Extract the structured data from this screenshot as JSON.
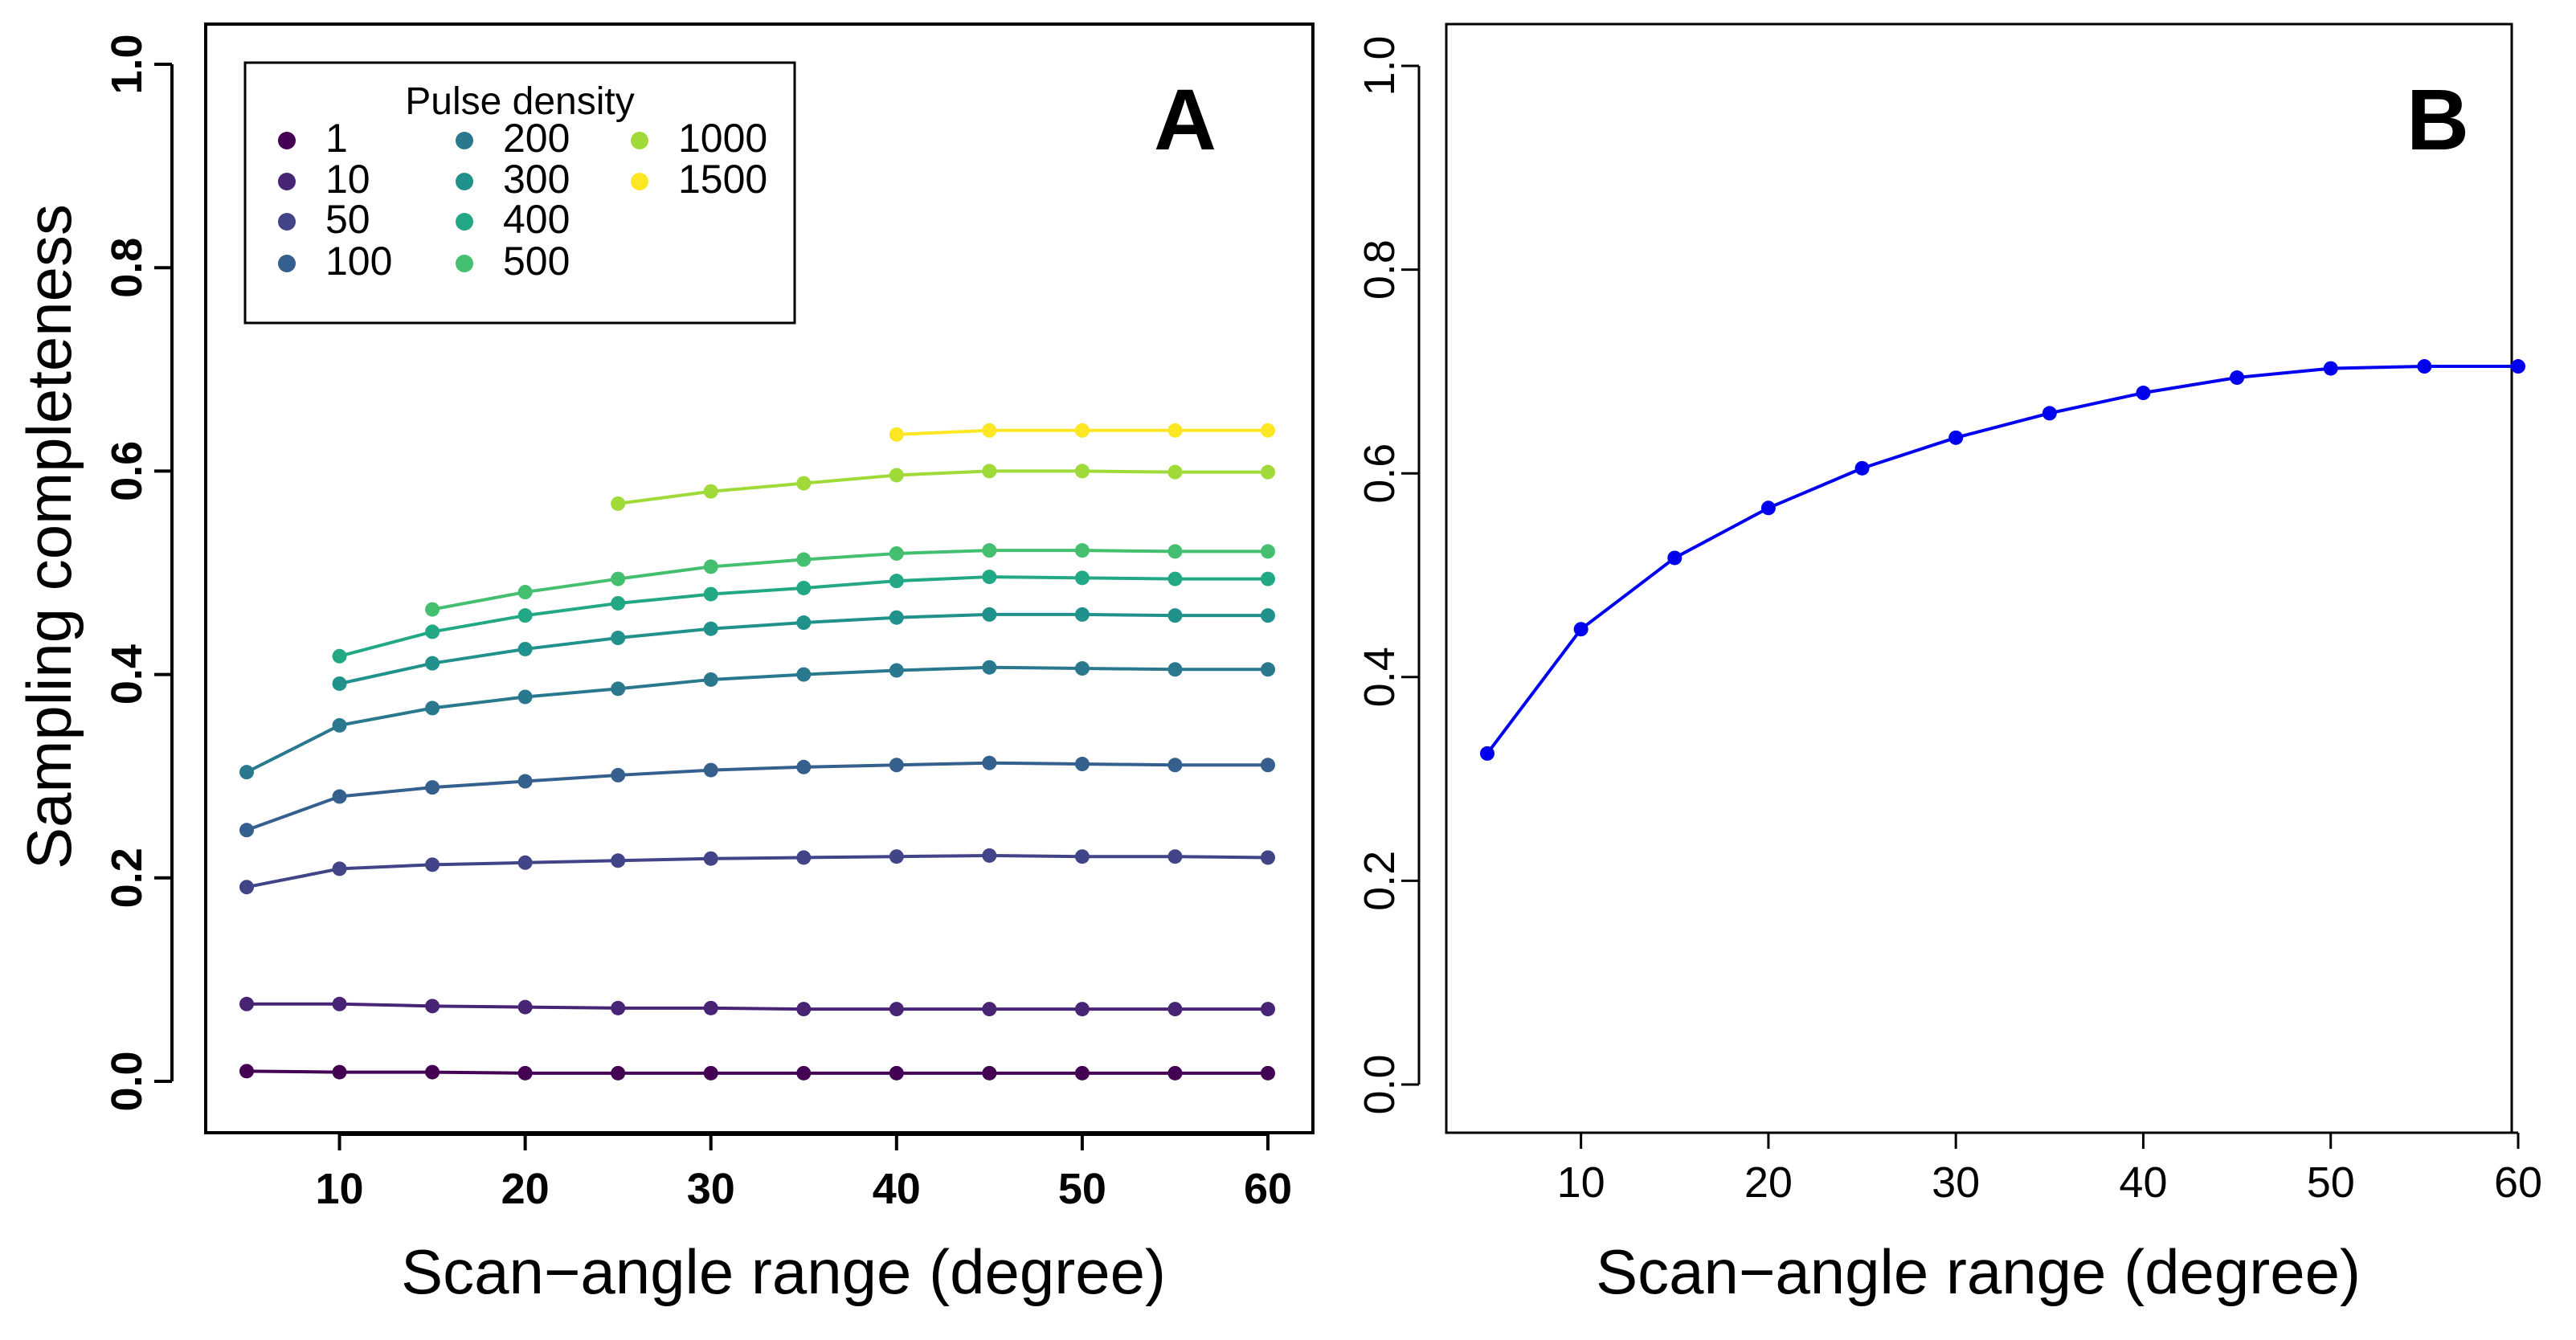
{
  "chart_data": [
    {
      "panel": "A",
      "type": "line",
      "xlabel": "Scan−angle range (degree)",
      "ylabel": "Sampling completeness",
      "xlim": [
        5,
        60
      ],
      "ylim": [
        0.0,
        1.0
      ],
      "xticks": [
        "10",
        "20",
        "30",
        "40",
        "50",
        "60"
      ],
      "yticks": [
        "0.0",
        "0.2",
        "0.4",
        "0.6",
        "0.8",
        "1.0"
      ],
      "legend": {
        "title": "Pulse density",
        "position": "top-left"
      },
      "series": [
        {
          "name": "1",
          "color": "#440154",
          "x": [
            5,
            10,
            15,
            20,
            25,
            30,
            35,
            40,
            45,
            50,
            55,
            60
          ],
          "values": [
            0.01,
            0.009,
            0.009,
            0.008,
            0.008,
            0.008,
            0.008,
            0.008,
            0.008,
            0.008,
            0.008,
            0.008
          ]
        },
        {
          "name": "10",
          "color": "#482475",
          "x": [
            5,
            10,
            15,
            20,
            25,
            30,
            35,
            40,
            45,
            50,
            55,
            60
          ],
          "values": [
            0.076,
            0.076,
            0.074,
            0.073,
            0.072,
            0.072,
            0.071,
            0.071,
            0.071,
            0.071,
            0.071,
            0.071
          ]
        },
        {
          "name": "50",
          "color": "#414487",
          "x": [
            5,
            10,
            15,
            20,
            25,
            30,
            35,
            40,
            45,
            50,
            55,
            60
          ],
          "values": [
            0.191,
            0.209,
            0.213,
            0.215,
            0.217,
            0.219,
            0.22,
            0.221,
            0.222,
            0.221,
            0.221,
            0.22
          ]
        },
        {
          "name": "100",
          "color": "#355f8d",
          "x": [
            5,
            10,
            15,
            20,
            25,
            30,
            35,
            40,
            45,
            50,
            55,
            60
          ],
          "values": [
            0.247,
            0.28,
            0.289,
            0.295,
            0.301,
            0.306,
            0.309,
            0.311,
            0.313,
            0.312,
            0.311,
            0.311
          ]
        },
        {
          "name": "200",
          "color": "#2a788e",
          "x": [
            5,
            10,
            15,
            20,
            25,
            30,
            35,
            40,
            45,
            50,
            55,
            60
          ],
          "values": [
            0.304,
            0.35,
            0.367,
            0.378,
            0.386,
            0.395,
            0.4,
            0.404,
            0.407,
            0.406,
            0.405,
            0.405
          ]
        },
        {
          "name": "300",
          "color": "#21918c",
          "x": [
            10,
            15,
            20,
            25,
            30,
            35,
            40,
            45,
            50,
            55,
            60
          ],
          "values": [
            0.391,
            0.411,
            0.425,
            0.436,
            0.445,
            0.451,
            0.456,
            0.459,
            0.459,
            0.458,
            0.458
          ]
        },
        {
          "name": "400",
          "color": "#22a884",
          "x": [
            10,
            15,
            20,
            25,
            30,
            35,
            40,
            45,
            50,
            55,
            60
          ],
          "values": [
            0.418,
            0.442,
            0.458,
            0.47,
            0.479,
            0.485,
            0.492,
            0.496,
            0.495,
            0.494,
            0.494
          ]
        },
        {
          "name": "500",
          "color": "#44bf70",
          "x": [
            15,
            20,
            25,
            30,
            35,
            40,
            45,
            50,
            55,
            60
          ],
          "values": [
            0.464,
            0.481,
            0.494,
            0.506,
            0.513,
            0.519,
            0.522,
            0.522,
            0.521,
            0.521
          ]
        },
        {
          "name": "1000",
          "color": "#a0da39",
          "x": [
            25,
            30,
            35,
            40,
            45,
            50,
            55,
            60
          ],
          "values": [
            0.568,
            0.58,
            0.588,
            0.596,
            0.6,
            0.6,
            0.599,
            0.599
          ]
        },
        {
          "name": "1500",
          "color": "#fde725",
          "x": [
            40,
            45,
            50,
            55,
            60
          ],
          "values": [
            0.636,
            0.64,
            0.64,
            0.64,
            0.64
          ]
        }
      ]
    },
    {
      "panel": "B",
      "type": "line",
      "xlabel": "Scan−angle range (degree)",
      "ylabel": "",
      "xlim": [
        5,
        60
      ],
      "ylim": [
        0.0,
        1.0
      ],
      "xticks": [
        "10",
        "20",
        "30",
        "40",
        "50",
        "60"
      ],
      "yticks": [
        "0.0",
        "0.2",
        "0.4",
        "0.6",
        "0.8",
        "1.0"
      ],
      "series": [
        {
          "name": "B",
          "color": "#0000ee",
          "x": [
            5,
            10,
            15,
            20,
            25,
            30,
            35,
            40,
            45,
            50,
            55,
            60
          ],
          "values": [
            0.325,
            0.447,
            0.517,
            0.566,
            0.605,
            0.635,
            0.659,
            0.679,
            0.694,
            0.703,
            0.705,
            0.705
          ]
        }
      ]
    }
  ]
}
